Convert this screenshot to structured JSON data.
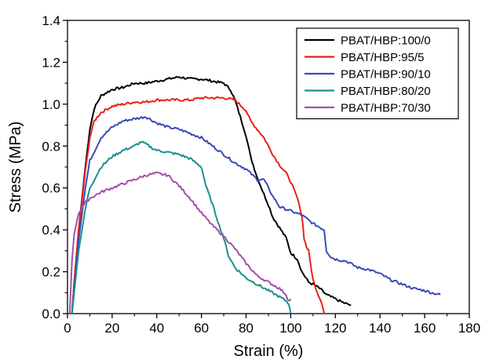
{
  "chart_data": {
    "type": "line",
    "title": "",
    "xlabel": "Strain (%)",
    "ylabel": "Stress (MPa)",
    "xlim": [
      0,
      180
    ],
    "ylim": [
      0,
      1.4
    ],
    "xticks": [
      "0",
      "20",
      "40",
      "60",
      "80",
      "100",
      "120",
      "140",
      "160",
      "180"
    ],
    "yticks": [
      "0.0",
      "0.2",
      "0.4",
      "0.6",
      "0.8",
      "1.0",
      "1.2",
      "1.4"
    ],
    "grid": false,
    "legend_position": "top-right",
    "series": [
      {
        "name": "PBAT/HBP:100/0",
        "color": "#000000",
        "x": [
          2,
          3,
          5,
          8,
          10,
          12,
          15,
          20,
          25,
          30,
          35,
          40,
          45,
          50,
          55,
          60,
          65,
          70,
          73,
          75,
          78,
          80,
          82,
          85,
          88,
          90,
          92,
          95,
          98,
          100,
          103,
          105,
          108,
          110,
          113,
          116,
          120,
          124,
          127
        ],
        "y": [
          0.0,
          0.15,
          0.4,
          0.7,
          0.88,
          0.98,
          1.04,
          1.07,
          1.08,
          1.1,
          1.1,
          1.11,
          1.12,
          1.13,
          1.12,
          1.12,
          1.11,
          1.1,
          1.07,
          1.02,
          0.92,
          0.85,
          0.75,
          0.65,
          0.57,
          0.52,
          0.46,
          0.41,
          0.36,
          0.29,
          0.26,
          0.2,
          0.15,
          0.14,
          0.12,
          0.09,
          0.07,
          0.05,
          0.04
        ]
      },
      {
        "name": "PBAT/HBP:95/5",
        "color": "#e8211c",
        "x": [
          2,
          3,
          5,
          8,
          10,
          12,
          15,
          20,
          25,
          30,
          35,
          40,
          45,
          50,
          55,
          60,
          65,
          70,
          75,
          78,
          80,
          82,
          85,
          88,
          90,
          92,
          95,
          98,
          100,
          103,
          105,
          106,
          107,
          108,
          110,
          112,
          114,
          115
        ],
        "y": [
          0.0,
          0.15,
          0.4,
          0.68,
          0.84,
          0.92,
          0.96,
          0.99,
          1.0,
          1.01,
          1.01,
          1.02,
          1.02,
          1.02,
          1.02,
          1.03,
          1.03,
          1.03,
          1.02,
          0.99,
          0.97,
          0.92,
          0.88,
          0.84,
          0.8,
          0.76,
          0.71,
          0.67,
          0.63,
          0.55,
          0.47,
          0.36,
          0.32,
          0.3,
          0.16,
          0.1,
          0.05,
          0.0
        ]
      },
      {
        "name": "PBAT/HBP:90/10",
        "color": "#3a4ab8",
        "x": [
          2,
          3,
          5,
          8,
          10,
          15,
          20,
          25,
          30,
          35,
          40,
          45,
          50,
          55,
          60,
          65,
          70,
          75,
          80,
          85,
          88,
          90,
          92,
          95,
          100,
          105,
          110,
          115,
          116,
          118,
          120,
          125,
          130,
          135,
          140,
          145,
          150,
          155,
          160,
          163,
          167
        ],
        "y": [
          0.0,
          0.12,
          0.35,
          0.6,
          0.73,
          0.84,
          0.89,
          0.92,
          0.93,
          0.94,
          0.91,
          0.89,
          0.88,
          0.86,
          0.84,
          0.8,
          0.76,
          0.72,
          0.69,
          0.64,
          0.64,
          0.6,
          0.56,
          0.51,
          0.49,
          0.47,
          0.43,
          0.4,
          0.3,
          0.27,
          0.26,
          0.25,
          0.22,
          0.21,
          0.19,
          0.16,
          0.14,
          0.12,
          0.11,
          0.1,
          0.09
        ]
      },
      {
        "name": "PBAT/HBP:80/20",
        "color": "#1a9090",
        "x": [
          2,
          3,
          5,
          8,
          10,
          15,
          20,
          25,
          30,
          33,
          35,
          38,
          40,
          45,
          50,
          55,
          60,
          62,
          65,
          68,
          70,
          72,
          75,
          78,
          80,
          85,
          90,
          95,
          98,
          99,
          100
        ],
        "y": [
          0.0,
          0.1,
          0.3,
          0.5,
          0.6,
          0.7,
          0.75,
          0.78,
          0.8,
          0.82,
          0.81,
          0.79,
          0.78,
          0.77,
          0.76,
          0.74,
          0.7,
          0.61,
          0.52,
          0.42,
          0.36,
          0.28,
          0.22,
          0.19,
          0.17,
          0.14,
          0.11,
          0.08,
          0.06,
          0.05,
          0.0
        ]
      },
      {
        "name": "PBAT/HBP:70/30",
        "color": "#a34fa8",
        "x": [
          1,
          2,
          3,
          5,
          8,
          10,
          15,
          20,
          25,
          30,
          35,
          40,
          45,
          50,
          55,
          60,
          65,
          70,
          75,
          80,
          85,
          90,
          95,
          98,
          99,
          100
        ],
        "y": [
          0.0,
          0.25,
          0.38,
          0.48,
          0.53,
          0.55,
          0.58,
          0.6,
          0.62,
          0.64,
          0.66,
          0.67,
          0.66,
          0.61,
          0.55,
          0.48,
          0.42,
          0.37,
          0.31,
          0.24,
          0.18,
          0.15,
          0.12,
          0.09,
          0.06,
          0.07
        ]
      }
    ]
  }
}
